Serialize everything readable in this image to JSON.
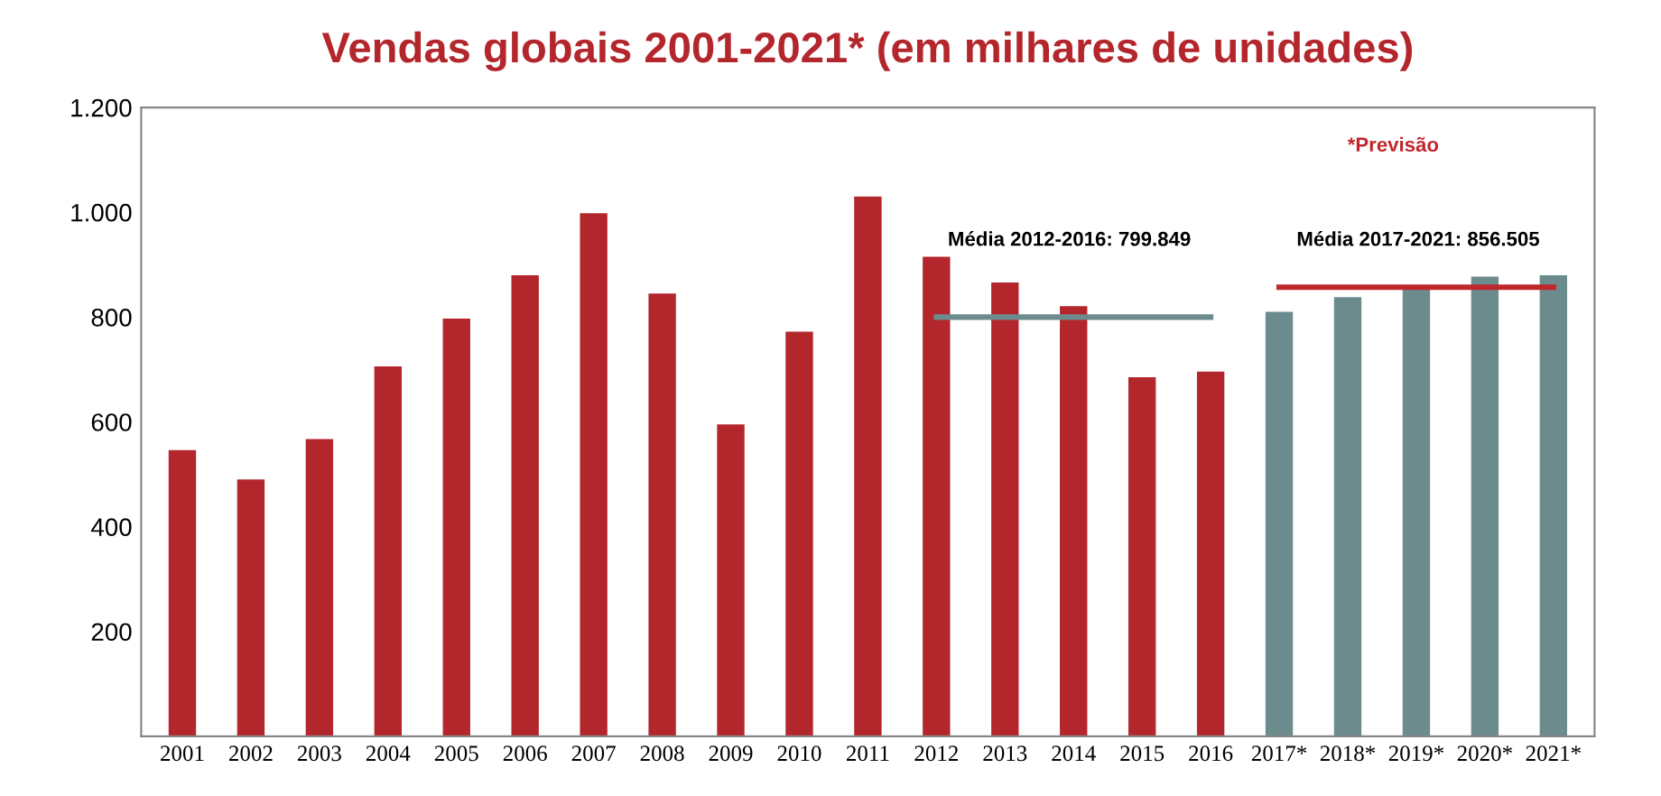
{
  "chart_data": {
    "type": "bar",
    "title": "Vendas globais 2001-2021* (em milhares de unidades)",
    "categories": [
      "2001",
      "2002",
      "2003",
      "2004",
      "2005",
      "2006",
      "2007",
      "2008",
      "2009",
      "2010",
      "2011",
      "2012",
      "2013",
      "2014",
      "2015",
      "2016",
      "2017*",
      "2018*",
      "2019*",
      "2020*",
      "2021*"
    ],
    "series": [
      {
        "values": [
          546,
          490,
          567,
          706,
          797,
          880,
          998,
          845,
          595,
          772,
          1030,
          915,
          866,
          821,
          685,
          696,
          810,
          838,
          859,
          877,
          880
        ],
        "colors": [
          "#b3262c",
          "#b3262c",
          "#b3262c",
          "#b3262c",
          "#b3262c",
          "#b3262c",
          "#b3262c",
          "#b3262c",
          "#b3262c",
          "#b3262c",
          "#b3262c",
          "#b3262c",
          "#b3262c",
          "#b3262c",
          "#b3262c",
          "#b3262c",
          "#6b8b8c",
          "#6b8b8c",
          "#6b8b8c",
          "#6b8b8c",
          "#6b8b8c"
        ]
      },
      {
        "type": "line",
        "color": "#6b8b8c",
        "values": [
          null,
          null,
          null,
          null,
          null,
          null,
          null,
          null,
          null,
          null,
          null,
          800,
          800,
          800,
          800,
          800,
          null,
          null,
          null,
          null,
          null
        ]
      },
      {
        "type": "line",
        "color": "#c0272d",
        "values": [
          null,
          null,
          null,
          null,
          null,
          null,
          null,
          null,
          null,
          null,
          null,
          null,
          null,
          null,
          null,
          null,
          857,
          857,
          857,
          857,
          857
        ]
      }
    ],
    "ylim": [
      0,
      1200
    ],
    "yticks": [
      200,
      400,
      600,
      800,
      {
        "value": 1000,
        "label": "1.000"
      },
      {
        "value": 1200,
        "label": "1.200"
      }
    ],
    "annotations": [
      "*Previsão",
      "Média 2012-2016: 799.849",
      "Média 2017-2021: 856.505"
    ]
  }
}
